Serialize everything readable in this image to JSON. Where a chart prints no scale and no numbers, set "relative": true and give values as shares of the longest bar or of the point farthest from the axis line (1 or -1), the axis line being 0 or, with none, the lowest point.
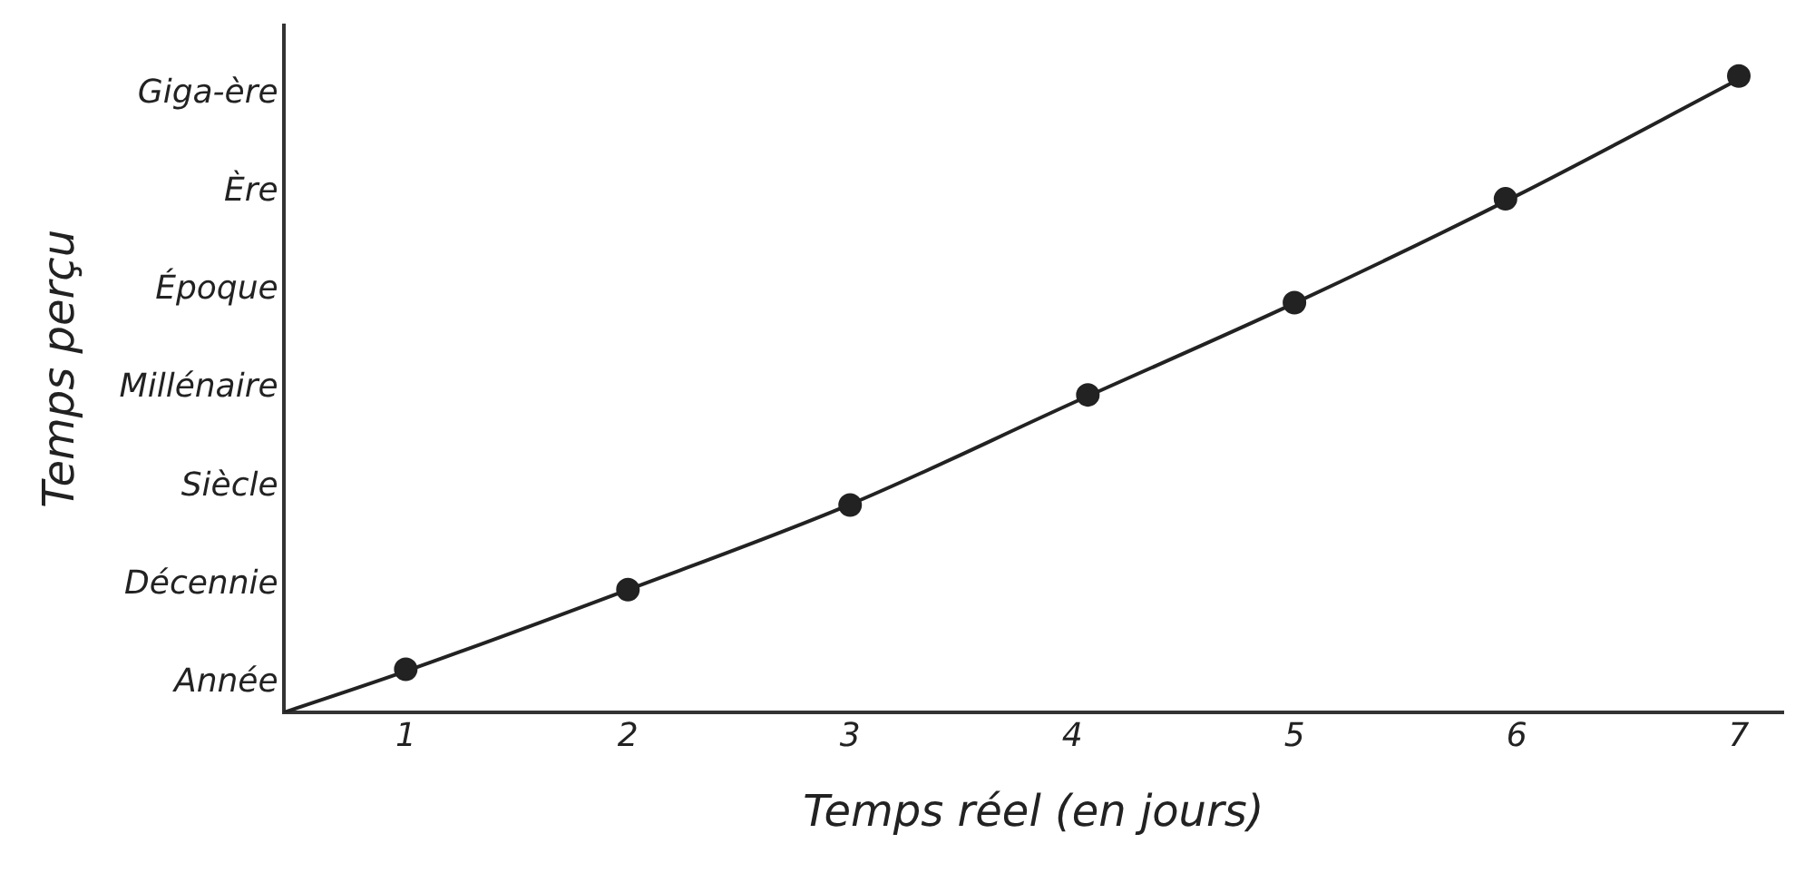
{
  "chart_data": {
    "type": "scatter",
    "xlabel": "Temps réel (en jours)",
    "ylabel": "Temps perçu",
    "relative": true,
    "annotations": [
      "Année",
      "Décennie",
      "Siècle",
      "Millénaire",
      "Époque",
      "Ère",
      "Giga-ère"
    ],
    "xlim": [
      0.45,
      7.2
    ],
    "xticks": [
      1,
      2,
      3,
      4,
      5,
      6,
      7
    ],
    "grid": false,
    "legend": false,
    "series": [
      {
        "marker": "circle",
        "color": "#222222",
        "x": [
          1,
          2,
          3,
          4.07,
          5,
          5.95,
          7
        ],
        "values": [
          0.068,
          0.193,
          0.326,
          0.499,
          0.644,
          0.807,
          1
        ]
      },
      {
        "type": "line",
        "color": "#222222",
        "x": [
          0.45,
          1,
          2,
          3,
          4,
          5,
          6,
          7
        ],
        "values": [
          0,
          0.065,
          0.193,
          0.327,
          0.486,
          0.643,
          0.812,
          0.995
        ]
      }
    ]
  }
}
